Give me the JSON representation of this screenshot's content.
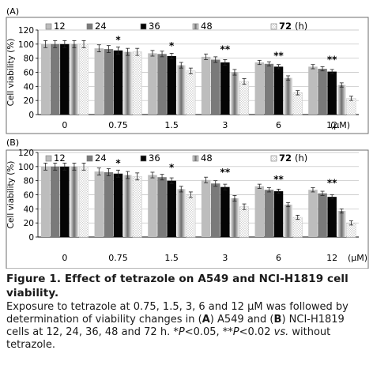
{
  "chart_data": [
    {
      "type": "bar",
      "panel_label": "(A)",
      "ylabel": "Cell viability (%)",
      "ylim": [
        0,
        120
      ],
      "yticks": [
        0,
        20,
        40,
        60,
        80,
        100,
        120
      ],
      "categories": [
        "0",
        "0.75",
        "1.5",
        "3",
        "6",
        "12"
      ],
      "x_unit": "(μM)",
      "legend": {
        "placement": "top",
        "unit": "(h)"
      },
      "grid": true,
      "series": [
        {
          "name": "12",
          "values": [
            100,
            94,
            87,
            82,
            74,
            68
          ],
          "errors": [
            5,
            5,
            4,
            4,
            3,
            3
          ],
          "color": "#bdbdbd"
        },
        {
          "name": "24",
          "values": [
            100,
            93,
            86,
            78,
            72,
            65
          ],
          "errors": [
            5,
            5,
            4,
            4,
            3,
            3
          ],
          "color": "#7a7a7a"
        },
        {
          "name": "36",
          "values": [
            100,
            91,
            83,
            74,
            68,
            61
          ],
          "errors": [
            5,
            5,
            4,
            4,
            3,
            3
          ],
          "color": "#050505"
        },
        {
          "name": "48",
          "values": [
            100,
            89,
            70,
            60,
            52,
            42
          ],
          "errors": [
            5,
            5,
            4,
            4,
            3,
            3
          ],
          "color": "#a9a9a9",
          "pattern": "gradient"
        },
        {
          "name": "72",
          "values": [
            100,
            89,
            62,
            47,
            31,
            23
          ],
          "errors": [
            5,
            5,
            4,
            4,
            3,
            3
          ],
          "color": "#ffffff",
          "pattern": "dots"
        }
      ],
      "annotations": [
        {
          "category": "0.75",
          "text": "*"
        },
        {
          "category": "1.5",
          "text": "*"
        },
        {
          "category": "3",
          "text": "**"
        },
        {
          "category": "6",
          "text": "**"
        },
        {
          "category": "12",
          "text": "**"
        }
      ]
    },
    {
      "type": "bar",
      "panel_label": "(B)",
      "ylabel": "Cell viability (%)",
      "ylim": [
        0,
        120
      ],
      "yticks": [
        0,
        20,
        40,
        60,
        80,
        100,
        120
      ],
      "categories": [
        "0",
        "0.75",
        "1.5",
        "3",
        "6",
        "12"
      ],
      "x_unit": "(μM)",
      "legend": {
        "placement": "top",
        "unit": "(h)"
      },
      "grid": true,
      "series": [
        {
          "name": "12",
          "values": [
            100,
            93,
            88,
            81,
            72,
            67
          ],
          "errors": [
            5,
            5,
            4,
            4,
            3,
            3
          ],
          "color": "#bdbdbd"
        },
        {
          "name": "24",
          "values": [
            100,
            92,
            85,
            76,
            67,
            62
          ],
          "errors": [
            5,
            5,
            4,
            4,
            3,
            3
          ],
          "color": "#7a7a7a"
        },
        {
          "name": "36",
          "values": [
            100,
            90,
            80,
            71,
            65,
            57
          ],
          "errors": [
            5,
            5,
            4,
            4,
            3,
            3
          ],
          "color": "#050505"
        },
        {
          "name": "48",
          "values": [
            100,
            88,
            68,
            55,
            46,
            37
          ],
          "errors": [
            5,
            5,
            4,
            4,
            3,
            3
          ],
          "color": "#a9a9a9",
          "pattern": "gradient"
        },
        {
          "name": "72",
          "values": [
            100,
            86,
            60,
            43,
            28,
            20
          ],
          "errors": [
            5,
            5,
            4,
            4,
            3,
            3
          ],
          "color": "#ffffff",
          "pattern": "dots"
        }
      ],
      "annotations": [
        {
          "category": "0.75",
          "text": "*"
        },
        {
          "category": "1.5",
          "text": "*"
        },
        {
          "category": "3",
          "text": "**"
        },
        {
          "category": "6",
          "text": "**"
        },
        {
          "category": "12",
          "text": "**"
        }
      ]
    }
  ],
  "caption": {
    "title": "Figure 1. Effect of tetrazole on A549 and NCI-H1819 cell viability.",
    "body_runs": [
      {
        "t": "Exposure to tetrazole at 0.75, 1.5, 3, 6 and 12 μM was followed by determination of viability changes in ("
      },
      {
        "t": "A",
        "style": "bold"
      },
      {
        "t": ") A549 and ("
      },
      {
        "t": "B",
        "style": "bold"
      },
      {
        "t": ") NCI-H1819 cells at 12, 24, 36, 48 and 72 h. *"
      },
      {
        "t": "P",
        "style": "italic"
      },
      {
        "t": "<0.05, **"
      },
      {
        "t": "P",
        "style": "italic"
      },
      {
        "t": "<0.02 "
      },
      {
        "t": "vs.",
        "style": "italic"
      },
      {
        "t": " without tetrazole."
      }
    ]
  }
}
